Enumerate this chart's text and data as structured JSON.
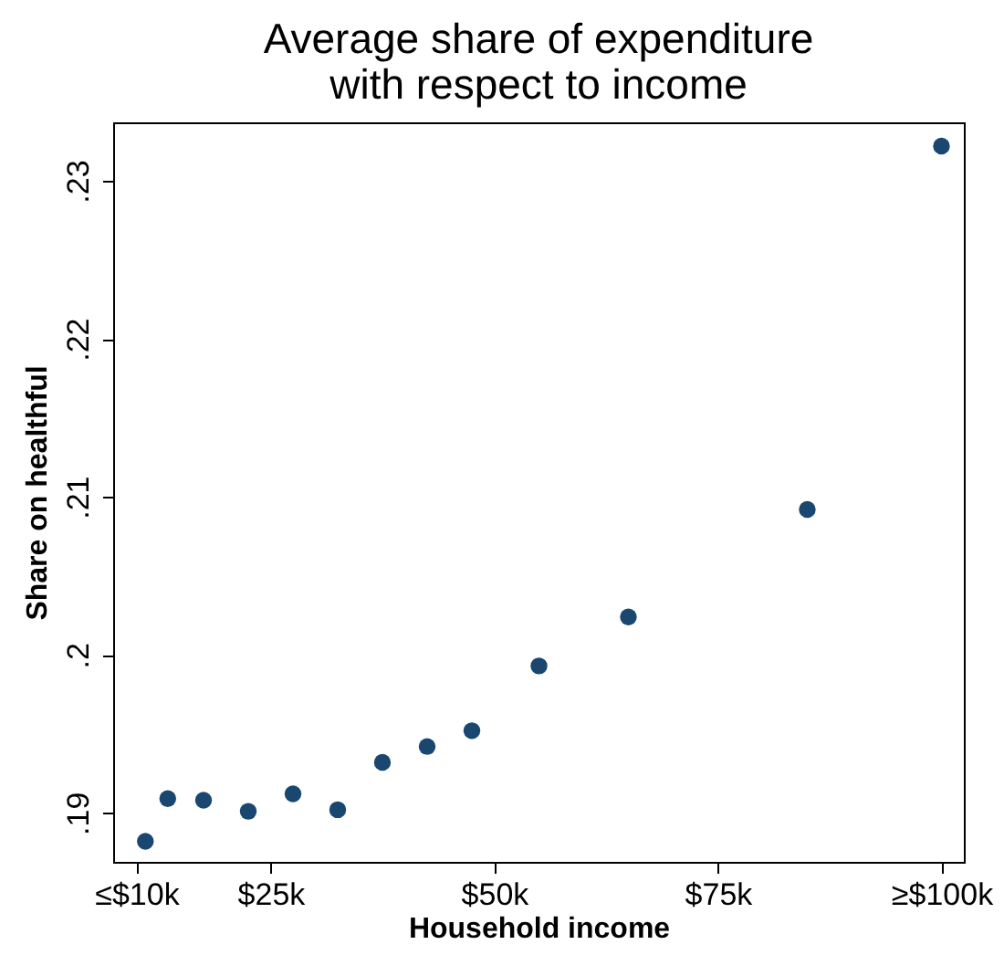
{
  "chart_data": {
    "type": "scatter",
    "title": "Average share of expenditure\nwith respect to income",
    "xlabel": "Household income",
    "ylabel": "Share on healthful",
    "x": [
      11,
      13.5,
      17.5,
      22.5,
      27.5,
      32.5,
      37.5,
      42.5,
      47.5,
      55,
      65,
      85,
      100
    ],
    "series": [
      {
        "color": "#1a476f",
        "values": [
          0.1882,
          0.1909,
          0.1908,
          0.1901,
          0.1912,
          0.1902,
          0.1932,
          0.1942,
          0.1952,
          0.1993,
          0.2024,
          0.2092,
          0.2322
        ]
      }
    ],
    "xlim": [
      7.4,
      102.5
    ],
    "xticks": [
      {
        "value": 10,
        "label": "≤$10k"
      },
      {
        "value": 25,
        "label": "$25k"
      },
      {
        "value": 50,
        "label": "$50k"
      },
      {
        "value": 75,
        "label": "$75k"
      },
      {
        "value": 100,
        "label": "≥$100k"
      }
    ],
    "ylim": [
      0.1869,
      0.2337
    ],
    "yticks": [
      {
        "value": 0.19,
        "label": ".19"
      },
      {
        "value": 0.2,
        "label": ".2"
      },
      {
        "value": 0.21,
        "label": ".21"
      },
      {
        "value": 0.22,
        "label": ".22"
      },
      {
        "value": 0.23,
        "label": ".23"
      }
    ],
    "grid": false,
    "legend": false,
    "marker": "circle"
  }
}
